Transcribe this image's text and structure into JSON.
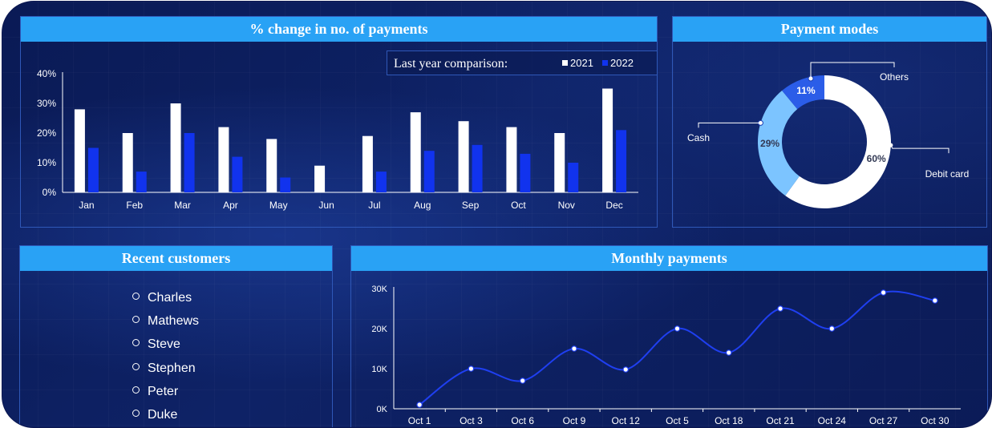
{
  "colors": {
    "header": "#29a2f5",
    "bar2021": "#ffffff",
    "bar2022": "#1133ee",
    "donut_debit": "#ffffff",
    "donut_cash": "#7cc4ff",
    "donut_others": "#2b5de8",
    "line": "#1f3ff0"
  },
  "panels": {
    "payments_change": {
      "title": "% change in no. of payments"
    },
    "payment_modes": {
      "title": "Payment modes"
    },
    "recent_customers": {
      "title": "Recent customers"
    },
    "monthly_payments": {
      "title": "Monthly payments"
    }
  },
  "legend": {
    "title": "Last year comparison:",
    "items": [
      "2021",
      "2022"
    ]
  },
  "customers": [
    "Charles",
    "Mathews",
    "Steve",
    "Stephen",
    "Peter",
    "Duke"
  ],
  "chart_data": [
    {
      "type": "bar",
      "title": "% change in no. of payments",
      "categories": [
        "Jan",
        "Feb",
        "Mar",
        "Apr",
        "May",
        "Jun",
        "Jul",
        "Aug",
        "Sep",
        "Oct",
        "Nov",
        "Dec"
      ],
      "series": [
        {
          "name": "2021",
          "values": [
            28,
            20,
            30,
            22,
            18,
            9,
            19,
            27,
            24,
            22,
            20,
            35
          ]
        },
        {
          "name": "2022",
          "values": [
            15,
            7,
            20,
            12,
            5,
            0,
            7,
            14,
            16,
            13,
            10,
            21
          ]
        }
      ],
      "ylim": [
        0,
        40
      ],
      "yticks": [
        0,
        10,
        20,
        30,
        40
      ],
      "ytick_labels": [
        "0%",
        "10%",
        "20%",
        "30%",
        "40%"
      ],
      "legend_position": "top-right"
    },
    {
      "type": "pie",
      "title": "Payment modes",
      "donut": true,
      "slices": [
        {
          "label": "Debit card",
          "value": 60,
          "text": "60%"
        },
        {
          "label": "Cash",
          "value": 29,
          "text": "29%"
        },
        {
          "label": "Others",
          "value": 11,
          "text": "11%"
        }
      ]
    },
    {
      "type": "line",
      "title": "Monthly payments",
      "x": [
        "Oct 1",
        "Oct 3",
        "Oct 6",
        "Oct 9",
        "Oct 12",
        "Oct 5",
        "Oct 18",
        "Oct 21",
        "Oct 24",
        "Oct 27",
        "Oct 30"
      ],
      "values": [
        1000,
        10000,
        7000,
        15000,
        9800,
        20000,
        14000,
        25000,
        20000,
        29000,
        27000
      ],
      "ylim": [
        0,
        30000
      ],
      "yticks": [
        0,
        10000,
        20000,
        30000
      ],
      "ytick_labels": [
        "0K",
        "10K",
        "20K",
        "30K"
      ]
    }
  ]
}
